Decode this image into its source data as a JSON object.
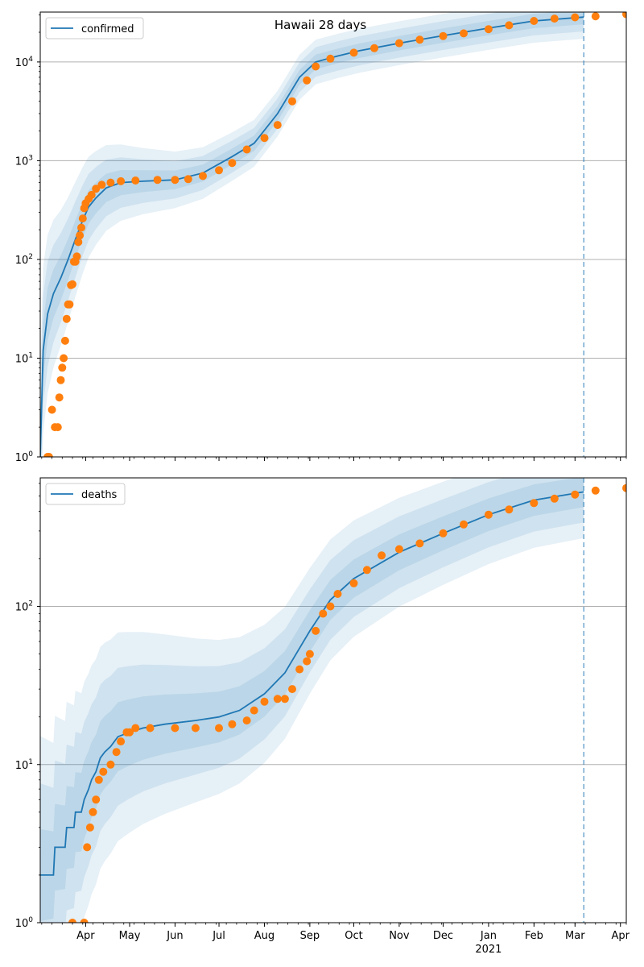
{
  "title": "Hawaii 28 days",
  "chart_data": [
    {
      "type": "line",
      "title": "Hawaii 28 days",
      "legend": {
        "label": "confirmed",
        "placement": "top-left"
      },
      "yscale": "log",
      "ylim": [
        1,
        32000
      ],
      "xlim": [
        "2020-03-01",
        "2021-04-05"
      ],
      "grid": "y-major",
      "yticks": [
        {
          "value": 1,
          "label": "10",
          "exp": "0"
        },
        {
          "value": 10,
          "label": "10",
          "exp": "1"
        },
        {
          "value": 100,
          "label": "10",
          "exp": "2"
        },
        {
          "value": 1000,
          "label": "10",
          "exp": "3"
        },
        {
          "value": 10000,
          "label": "10",
          "exp": "4"
        }
      ],
      "forecast_start": "2021-03-07",
      "colors": {
        "model": "#1f77b4",
        "observed": "#ff7f0e",
        "band": "#1f77b4"
      },
      "series": [
        {
          "name": "confirmed",
          "kind": "model-line",
          "x": [
            "2020-03-01",
            "2020-03-03",
            "2020-03-06",
            "2020-03-10",
            "2020-03-15",
            "2020-03-20",
            "2020-03-25",
            "2020-03-30",
            "2020-04-03",
            "2020-04-08",
            "2020-04-15",
            "2020-04-25",
            "2020-05-10",
            "2020-06-01",
            "2020-06-20",
            "2020-07-10",
            "2020-07-25",
            "2020-08-10",
            "2020-08-25",
            "2020-09-05",
            "2020-09-20",
            "2020-10-05",
            "2020-11-01",
            "2020-12-01",
            "2021-01-01",
            "2021-02-01",
            "2021-03-07"
          ],
          "y": [
            1,
            12,
            28,
            45,
            65,
            100,
            160,
            250,
            340,
            420,
            530,
            600,
            620,
            640,
            750,
            1100,
            1500,
            3000,
            7000,
            10000,
            11500,
            13000,
            15500,
            18500,
            22000,
            26000,
            28500
          ]
        },
        {
          "name": "confirmed",
          "kind": "observed-points",
          "x": [
            "2020-03-06",
            "2020-03-07",
            "2020-03-09",
            "2020-03-11",
            "2020-03-13",
            "2020-03-14",
            "2020-03-15",
            "2020-03-16",
            "2020-03-17",
            "2020-03-18",
            "2020-03-19",
            "2020-03-20",
            "2020-03-21",
            "2020-03-22",
            "2020-03-23",
            "2020-03-24",
            "2020-03-25",
            "2020-03-26",
            "2020-03-27",
            "2020-03-28",
            "2020-03-29",
            "2020-03-30",
            "2020-03-31",
            "2020-04-01",
            "2020-04-03",
            "2020-04-05",
            "2020-04-08",
            "2020-04-12",
            "2020-04-18",
            "2020-04-25",
            "2020-05-05",
            "2020-05-20",
            "2020-06-01",
            "2020-06-10",
            "2020-06-20",
            "2020-07-01",
            "2020-07-10",
            "2020-07-20",
            "2020-08-01",
            "2020-08-10",
            "2020-08-20",
            "2020-08-30",
            "2020-09-05",
            "2020-09-15",
            "2020-10-01",
            "2020-10-15",
            "2020-11-01",
            "2020-11-15",
            "2020-12-01",
            "2020-12-15",
            "2021-01-01",
            "2021-01-15",
            "2021-02-01",
            "2021-02-15",
            "2021-03-01",
            "2021-03-15",
            "2021-04-05"
          ],
          "y": [
            1,
            1,
            3,
            2,
            2,
            4,
            6,
            8,
            10,
            15,
            25,
            35,
            35,
            55,
            56,
            95,
            95,
            107,
            150,
            175,
            210,
            260,
            330,
            370,
            410,
            450,
            520,
            570,
            600,
            620,
            630,
            640,
            640,
            650,
            700,
            800,
            950,
            1300,
            1700,
            2300,
            4000,
            6500,
            9000,
            10800,
            12400,
            13800,
            15500,
            16800,
            18300,
            19500,
            21500,
            23500,
            26000,
            27500,
            28300,
            29000,
            30500
          ]
        }
      ]
    },
    {
      "type": "line",
      "legend": {
        "label": "deaths",
        "placement": "top-left"
      },
      "yscale": "log",
      "ylim": [
        1,
        650
      ],
      "xlim": [
        "2020-03-01",
        "2021-04-05"
      ],
      "grid": "y-major",
      "yticks": [
        {
          "value": 1,
          "label": "10",
          "exp": "0"
        },
        {
          "value": 10,
          "label": "10",
          "exp": "1"
        },
        {
          "value": 100,
          "label": "10",
          "exp": "2"
        }
      ],
      "xticks": [
        {
          "date": "2020-04-01",
          "label": "Apr"
        },
        {
          "date": "2020-05-01",
          "label": "May"
        },
        {
          "date": "2020-06-01",
          "label": "Jun"
        },
        {
          "date": "2020-07-01",
          "label": "Jul"
        },
        {
          "date": "2020-08-01",
          "label": "Aug"
        },
        {
          "date": "2020-09-01",
          "label": "Sep"
        },
        {
          "date": "2020-10-01",
          "label": "Oct"
        },
        {
          "date": "2020-11-01",
          "label": "Nov"
        },
        {
          "date": "2020-12-01",
          "label": "Dec"
        },
        {
          "date": "2021-01-01",
          "label": "Jan",
          "sublabel": "2021"
        },
        {
          "date": "2021-02-01",
          "label": "Feb"
        },
        {
          "date": "2021-03-01",
          "label": "Mar"
        },
        {
          "date": "2021-04-01",
          "label": "Apr"
        }
      ],
      "forecast_start": "2021-03-07",
      "colors": {
        "model": "#1f77b4",
        "observed": "#ff7f0e",
        "band": "#1f77b4"
      },
      "series": [
        {
          "name": "deaths",
          "kind": "model-line",
          "x": [
            "2020-03-01",
            "2020-03-10",
            "2020-03-11",
            "2020-03-18",
            "2020-03-19",
            "2020-03-24",
            "2020-03-25",
            "2020-03-29",
            "2020-03-31",
            "2020-04-03",
            "2020-04-05",
            "2020-04-08",
            "2020-04-11",
            "2020-04-14",
            "2020-04-18",
            "2020-04-23",
            "2020-05-01",
            "2020-05-10",
            "2020-05-25",
            "2020-06-15",
            "2020-07-01",
            "2020-07-15",
            "2020-08-01",
            "2020-08-15",
            "2020-09-01",
            "2020-09-15",
            "2020-10-01",
            "2020-11-01",
            "2020-12-01",
            "2021-01-01",
            "2021-02-01",
            "2021-03-07"
          ],
          "y": [
            2,
            2,
            3,
            3,
            4,
            4,
            5,
            5,
            6,
            7,
            8,
            9,
            11,
            12,
            13,
            15,
            16,
            17,
            18,
            19,
            20,
            22,
            28,
            38,
            70,
            110,
            150,
            220,
            290,
            380,
            470,
            530
          ]
        },
        {
          "name": "deaths",
          "kind": "observed-points",
          "x": [
            "2020-03-23",
            "2020-03-31",
            "2020-04-02",
            "2020-04-04",
            "2020-04-06",
            "2020-04-08",
            "2020-04-10",
            "2020-04-13",
            "2020-04-18",
            "2020-04-22",
            "2020-04-25",
            "2020-04-29",
            "2020-05-01",
            "2020-05-05",
            "2020-05-15",
            "2020-06-01",
            "2020-06-15",
            "2020-07-01",
            "2020-07-10",
            "2020-07-20",
            "2020-07-25",
            "2020-08-01",
            "2020-08-10",
            "2020-08-15",
            "2020-08-20",
            "2020-08-25",
            "2020-08-30",
            "2020-09-01",
            "2020-09-05",
            "2020-09-10",
            "2020-09-15",
            "2020-09-20",
            "2020-10-01",
            "2020-10-10",
            "2020-10-20",
            "2020-11-01",
            "2020-11-15",
            "2020-12-01",
            "2020-12-15",
            "2021-01-01",
            "2021-01-15",
            "2021-02-01",
            "2021-02-15",
            "2021-03-01",
            "2021-03-15",
            "2021-04-05"
          ],
          "y": [
            1,
            1,
            3,
            4,
            5,
            6,
            8,
            9,
            10,
            12,
            14,
            16,
            16,
            17,
            17,
            17,
            17,
            17,
            18,
            19,
            22,
            25,
            26,
            26,
            30,
            40,
            45,
            50,
            70,
            90,
            100,
            120,
            140,
            170,
            210,
            230,
            250,
            290,
            330,
            380,
            410,
            450,
            480,
            510,
            540,
            560
          ]
        }
      ]
    }
  ]
}
